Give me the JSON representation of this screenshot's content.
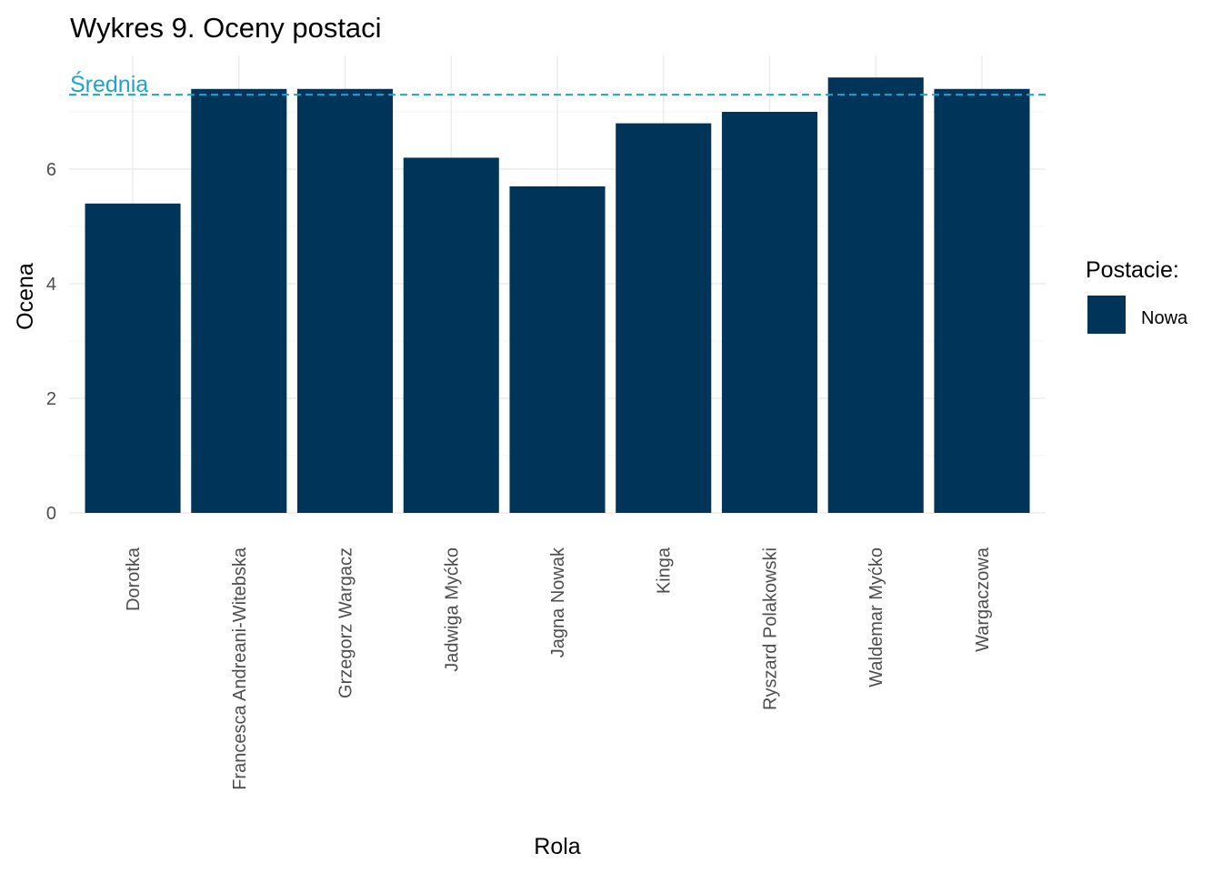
{
  "chart_data": {
    "type": "bar",
    "title": "Wykres 9. Oceny postaci",
    "xlabel": "Rola",
    "ylabel": "Ocena",
    "categories": [
      "Dorotka",
      "Francesca Andreani-Witebska",
      "Grzegorz Wargacz",
      "Jadwiga Myćko",
      "Jagna Nowak",
      "Kinga",
      "Ryszard Polakowski",
      "Waldemar Myćko",
      "Wargaczowa"
    ],
    "series": [
      {
        "name": "Nowa",
        "values": [
          5.4,
          7.4,
          7.4,
          6.2,
          5.7,
          6.8,
          7.0,
          7.6,
          7.4
        ],
        "color": "#003559"
      }
    ],
    "yticks": [
      0,
      2,
      4,
      6
    ],
    "ylim": [
      0,
      8
    ],
    "grid": true,
    "mean_line": {
      "label": "Średnia",
      "value": 7.3,
      "color": "#1ba3d9",
      "style": "dashed"
    },
    "legend": {
      "title": "Postacie:",
      "placement": "right"
    }
  }
}
